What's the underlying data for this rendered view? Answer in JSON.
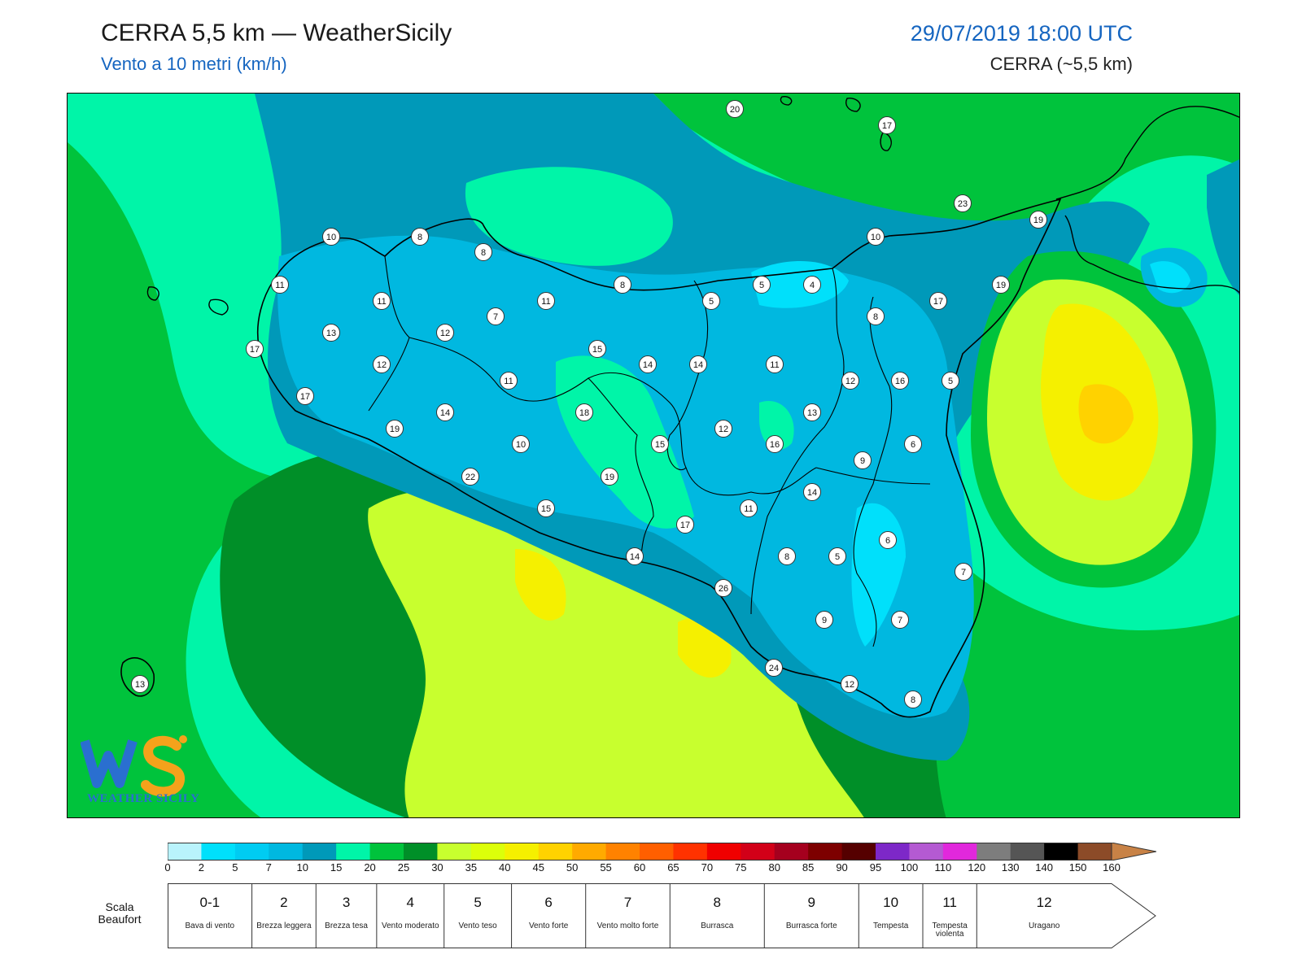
{
  "header": {
    "title": "CERRA 5,5 km — WeatherSicily",
    "subtitle": "Vento a 10 metri (km/h)",
    "datetime": "29/07/2019 18:00 UTC",
    "model": "CERRA (~5,5 km)"
  },
  "logo": {
    "text": "WEATHER SICILY",
    "letters": "WS"
  },
  "colorbar": {
    "labels": [
      "0",
      "2",
      "5",
      "7",
      "10",
      "15",
      "20",
      "25",
      "30",
      "35",
      "40",
      "45",
      "50",
      "55",
      "60",
      "65",
      "70",
      "75",
      "80",
      "85",
      "90",
      "95",
      "100",
      "110",
      "120",
      "130",
      "140",
      "150",
      "160"
    ],
    "colors": [
      "#b9f3fc",
      "#00e0fb",
      "#00ccf2",
      "#00b8e0",
      "#0099b9",
      "#00f5a8",
      "#00c33c",
      "#008f28",
      "#c8ff2e",
      "#dcff0a",
      "#f5f000",
      "#ffd200",
      "#ffaa00",
      "#ff8200",
      "#ff5f00",
      "#ff3200",
      "#f00000",
      "#d20018",
      "#a5001e",
      "#7d0000",
      "#550000",
      "#7d28c8",
      "#b45ad2",
      "#e128dc",
      "#7d7d7d",
      "#555555",
      "#000000",
      "#8c4b28",
      "#c88246"
    ]
  },
  "beaufort": {
    "caption": "Scala Beaufort",
    "levels": [
      {
        "num": "0-1",
        "desc": "Bava di vento"
      },
      {
        "num": "2",
        "desc": "Brezza leggera"
      },
      {
        "num": "3",
        "desc": "Brezza tesa"
      },
      {
        "num": "4",
        "desc": "Vento moderato"
      },
      {
        "num": "5",
        "desc": "Vento teso"
      },
      {
        "num": "6",
        "desc": "Vento forte"
      },
      {
        "num": "7",
        "desc": "Vento molto forte"
      },
      {
        "num": "8",
        "desc": "Burrasca"
      },
      {
        "num": "9",
        "desc": "Burrasca forte"
      },
      {
        "num": "10",
        "desc": "Tempesta"
      },
      {
        "num": "11",
        "desc": "Tempesta violenta"
      },
      {
        "num": "12",
        "desc": "Uragano"
      }
    ]
  },
  "stations": [
    "20",
    "17",
    "23",
    "19",
    "10",
    "8",
    "8",
    "11",
    "11",
    "7",
    "11",
    "8",
    "5",
    "5",
    "4",
    "10",
    "19",
    "17",
    "13",
    "12",
    "17",
    "14",
    "11",
    "12",
    "15",
    "14",
    "14",
    "11",
    "8",
    "12",
    "16",
    "5",
    "17",
    "19",
    "22",
    "10",
    "18",
    "15",
    "12",
    "13",
    "16",
    "6",
    "9",
    "15",
    "17",
    "19",
    "11",
    "14",
    "8",
    "5",
    "6",
    "7",
    "14",
    "26",
    "9",
    "7",
    "24",
    "12",
    "8",
    "13"
  ]
}
